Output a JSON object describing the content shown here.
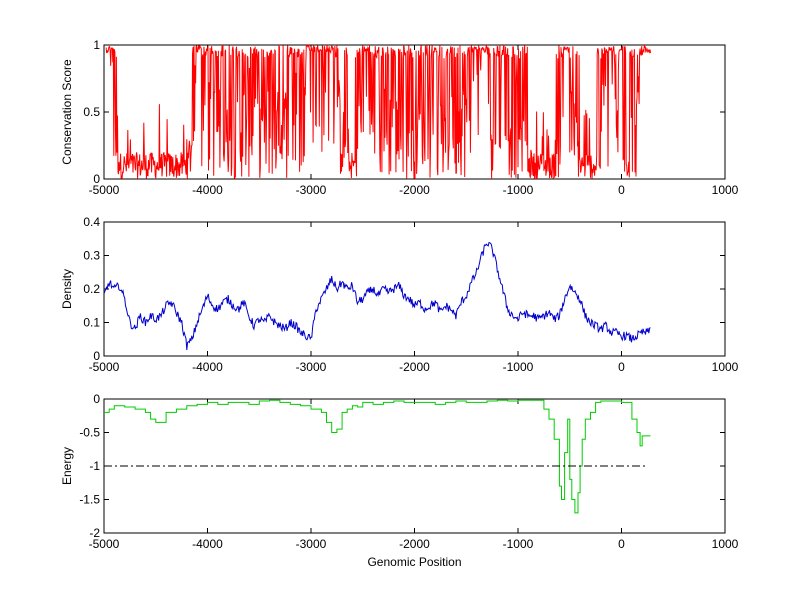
{
  "colors": {
    "background": "#ffffff",
    "axes": "#000000",
    "conservation": "#ff0000",
    "density": "#0000cc",
    "energy": "#00cc00",
    "threshold": "#000000"
  },
  "chart_data": [
    {
      "type": "line",
      "title": "",
      "xlabel": "",
      "ylabel": "Conservation Score",
      "xlim": [
        -5000,
        1000
      ],
      "ylim": [
        0,
        1
      ],
      "xticks": [
        "-5000",
        "-4000",
        "-3000",
        "-2000",
        "-1000",
        "0",
        "1000"
      ],
      "yticks": [
        "0",
        "0.5",
        "1"
      ],
      "series": [
        {
          "color": "#ff0000",
          "style": "noisy",
          "x": [
            -4980,
            -4920,
            -4880,
            -4850,
            -4800,
            -4700,
            -4600,
            -4500,
            -4400,
            -4300,
            -4200,
            -4150,
            -4100,
            -4050,
            -4000,
            -3900,
            -3800,
            -3700,
            -3600,
            -3500,
            -3400,
            -3300,
            -3200,
            -3100,
            -3000,
            -2900,
            -2800,
            -2700,
            -2650,
            -2600,
            -2550,
            -2500,
            -2450,
            -2400,
            -2350,
            -2300,
            -2200,
            -2100,
            -2000,
            -1900,
            -1800,
            -1700,
            -1600,
            -1500,
            -1450,
            -1400,
            -1300,
            -1200,
            -1100,
            -1050,
            -1000,
            -950,
            -900,
            -850,
            -800,
            -750,
            -700,
            -650,
            -600,
            -550,
            -500,
            -450,
            -400,
            -350,
            -300,
            -250,
            -200,
            -150,
            -100,
            -50,
            0,
            50,
            100,
            150,
            200,
            250,
            280
          ],
          "y": [
            1.0,
            0.95,
            0.6,
            0.2,
            0.12,
            0.08,
            0.1,
            0.05,
            0.06,
            0.1,
            0.12,
            0.45,
            0.9,
            0.75,
            0.65,
            0.6,
            0.45,
            0.55,
            0.7,
            0.55,
            0.6,
            0.55,
            0.65,
            0.75,
            0.85,
            0.9,
            0.85,
            0.55,
            0.2,
            0.05,
            0.4,
            0.85,
            0.95,
            0.7,
            0.5,
            0.6,
            0.55,
            0.5,
            0.45,
            0.6,
            0.5,
            0.5,
            0.55,
            0.75,
            0.95,
            0.85,
            0.8,
            0.6,
            0.65,
            0.7,
            0.6,
            0.4,
            0.15,
            0.05,
            0.08,
            0.1,
            0.05,
            0.05,
            0.5,
            0.95,
            0.8,
            0.5,
            0.2,
            0.1,
            0.05,
            0.15,
            0.4,
            0.95,
            0.95,
            0.7,
            0.9,
            0.05,
            0.5,
            0.6,
            0.75,
            0.9,
            1.0
          ]
        }
      ]
    },
    {
      "type": "line",
      "title": "",
      "xlabel": "",
      "ylabel": "Density",
      "xlim": [
        -5000,
        1000
      ],
      "ylim": [
        0,
        0.4
      ],
      "xticks": [
        "-5000",
        "-4000",
        "-3000",
        "-2000",
        "-1000",
        "0",
        "1000"
      ],
      "yticks": [
        "0",
        "0.1",
        "0.2",
        "0.3",
        "0.4"
      ],
      "series": [
        {
          "color": "#0000cc",
          "style": "jagged",
          "x": [
            -5000,
            -4950,
            -4900,
            -4850,
            -4800,
            -4750,
            -4700,
            -4650,
            -4600,
            -4550,
            -4500,
            -4450,
            -4400,
            -4350,
            -4300,
            -4250,
            -4200,
            -4150,
            -4100,
            -4050,
            -4000,
            -3950,
            -3900,
            -3850,
            -3800,
            -3750,
            -3700,
            -3650,
            -3600,
            -3550,
            -3500,
            -3450,
            -3400,
            -3350,
            -3300,
            -3250,
            -3200,
            -3150,
            -3100,
            -3050,
            -3000,
            -2950,
            -2900,
            -2850,
            -2800,
            -2750,
            -2700,
            -2650,
            -2600,
            -2550,
            -2500,
            -2450,
            -2400,
            -2350,
            -2300,
            -2250,
            -2200,
            -2150,
            -2100,
            -2050,
            -2000,
            -1950,
            -1900,
            -1850,
            -1800,
            -1750,
            -1700,
            -1650,
            -1600,
            -1550,
            -1500,
            -1450,
            -1400,
            -1350,
            -1300,
            -1250,
            -1200,
            -1150,
            -1100,
            -1050,
            -1000,
            -950,
            -900,
            -850,
            -800,
            -750,
            -700,
            -650,
            -600,
            -550,
            -500,
            -450,
            -400,
            -350,
            -300,
            -250,
            -200,
            -150,
            -100,
            -50,
            0,
            50,
            100,
            150,
            200,
            250,
            280
          ],
          "y": [
            0.18,
            0.22,
            0.2,
            0.21,
            0.17,
            0.1,
            0.08,
            0.12,
            0.1,
            0.12,
            0.11,
            0.12,
            0.15,
            0.16,
            0.13,
            0.1,
            0.03,
            0.05,
            0.1,
            0.14,
            0.18,
            0.15,
            0.14,
            0.16,
            0.17,
            0.15,
            0.14,
            0.16,
            0.12,
            0.09,
            0.11,
            0.1,
            0.12,
            0.1,
            0.09,
            0.08,
            0.1,
            0.09,
            0.07,
            0.06,
            0.05,
            0.14,
            0.17,
            0.2,
            0.23,
            0.2,
            0.22,
            0.2,
            0.21,
            0.16,
            0.17,
            0.19,
            0.2,
            0.18,
            0.2,
            0.19,
            0.2,
            0.21,
            0.18,
            0.17,
            0.15,
            0.16,
            0.14,
            0.15,
            0.16,
            0.13,
            0.15,
            0.14,
            0.12,
            0.16,
            0.18,
            0.22,
            0.25,
            0.3,
            0.34,
            0.32,
            0.26,
            0.2,
            0.14,
            0.12,
            0.11,
            0.13,
            0.12,
            0.12,
            0.11,
            0.12,
            0.13,
            0.11,
            0.12,
            0.17,
            0.21,
            0.19,
            0.17,
            0.12,
            0.1,
            0.09,
            0.08,
            0.09,
            0.07,
            0.07,
            0.06,
            0.06,
            0.05,
            0.06,
            0.07,
            0.07,
            0.08
          ]
        }
      ]
    },
    {
      "type": "line",
      "title": "",
      "xlabel": "Genomic Position",
      "ylabel": "Energy",
      "xlim": [
        -5000,
        1000
      ],
      "ylim": [
        -2,
        0
      ],
      "xticks": [
        "-5000",
        "-4000",
        "-3000",
        "-2000",
        "-1000",
        "0",
        "1000"
      ],
      "yticks": [
        "-2",
        "-1.5",
        "-1",
        "-0.5",
        "0"
      ],
      "series": [
        {
          "color": "#00cc00",
          "style": "step",
          "x": [
            -5000,
            -4950,
            -4900,
            -4800,
            -4700,
            -4600,
            -4550,
            -4500,
            -4400,
            -4300,
            -4200,
            -4100,
            -4000,
            -3900,
            -3800,
            -3700,
            -3600,
            -3500,
            -3400,
            -3300,
            -3200,
            -3100,
            -3000,
            -2900,
            -2850,
            -2800,
            -2750,
            -2700,
            -2650,
            -2600,
            -2550,
            -2500,
            -2400,
            -2300,
            -2200,
            -2100,
            -2000,
            -1900,
            -1800,
            -1700,
            -1600,
            -1500,
            -1400,
            -1300,
            -1200,
            -1100,
            -1000,
            -900,
            -800,
            -750,
            -700,
            -650,
            -600,
            -580,
            -550,
            -520,
            -500,
            -480,
            -450,
            -420,
            -400,
            -380,
            -350,
            -300,
            -250,
            -200,
            -150,
            -100,
            -50,
            0,
            50,
            100,
            150,
            180,
            200,
            250,
            280
          ],
          "y": [
            -0.2,
            -0.15,
            -0.1,
            -0.12,
            -0.15,
            -0.2,
            -0.3,
            -0.35,
            -0.2,
            -0.15,
            -0.1,
            -0.08,
            -0.05,
            -0.08,
            -0.05,
            -0.05,
            -0.08,
            -0.03,
            -0.02,
            -0.05,
            -0.08,
            -0.1,
            -0.15,
            -0.2,
            -0.35,
            -0.5,
            -0.45,
            -0.2,
            -0.15,
            -0.1,
            -0.12,
            -0.05,
            -0.08,
            -0.05,
            -0.03,
            -0.05,
            -0.05,
            -0.05,
            -0.08,
            -0.05,
            -0.03,
            -0.05,
            -0.05,
            -0.03,
            -0.02,
            -0.03,
            -0.02,
            -0.02,
            -0.02,
            -0.15,
            -0.3,
            -0.6,
            -1.3,
            -1.5,
            -0.8,
            -0.3,
            -1.2,
            -1.5,
            -1.7,
            -1.4,
            -1.0,
            -0.6,
            -0.3,
            -0.2,
            -0.05,
            -0.03,
            -0.03,
            -0.03,
            -0.03,
            -0.05,
            -0.05,
            -0.3,
            -0.5,
            -0.7,
            -0.55,
            -0.55,
            -0.55
          ]
        },
        {
          "color": "#000000",
          "style": "dashdot",
          "x": [
            -5000,
            250
          ],
          "y": [
            -1,
            -1
          ]
        }
      ]
    }
  ]
}
